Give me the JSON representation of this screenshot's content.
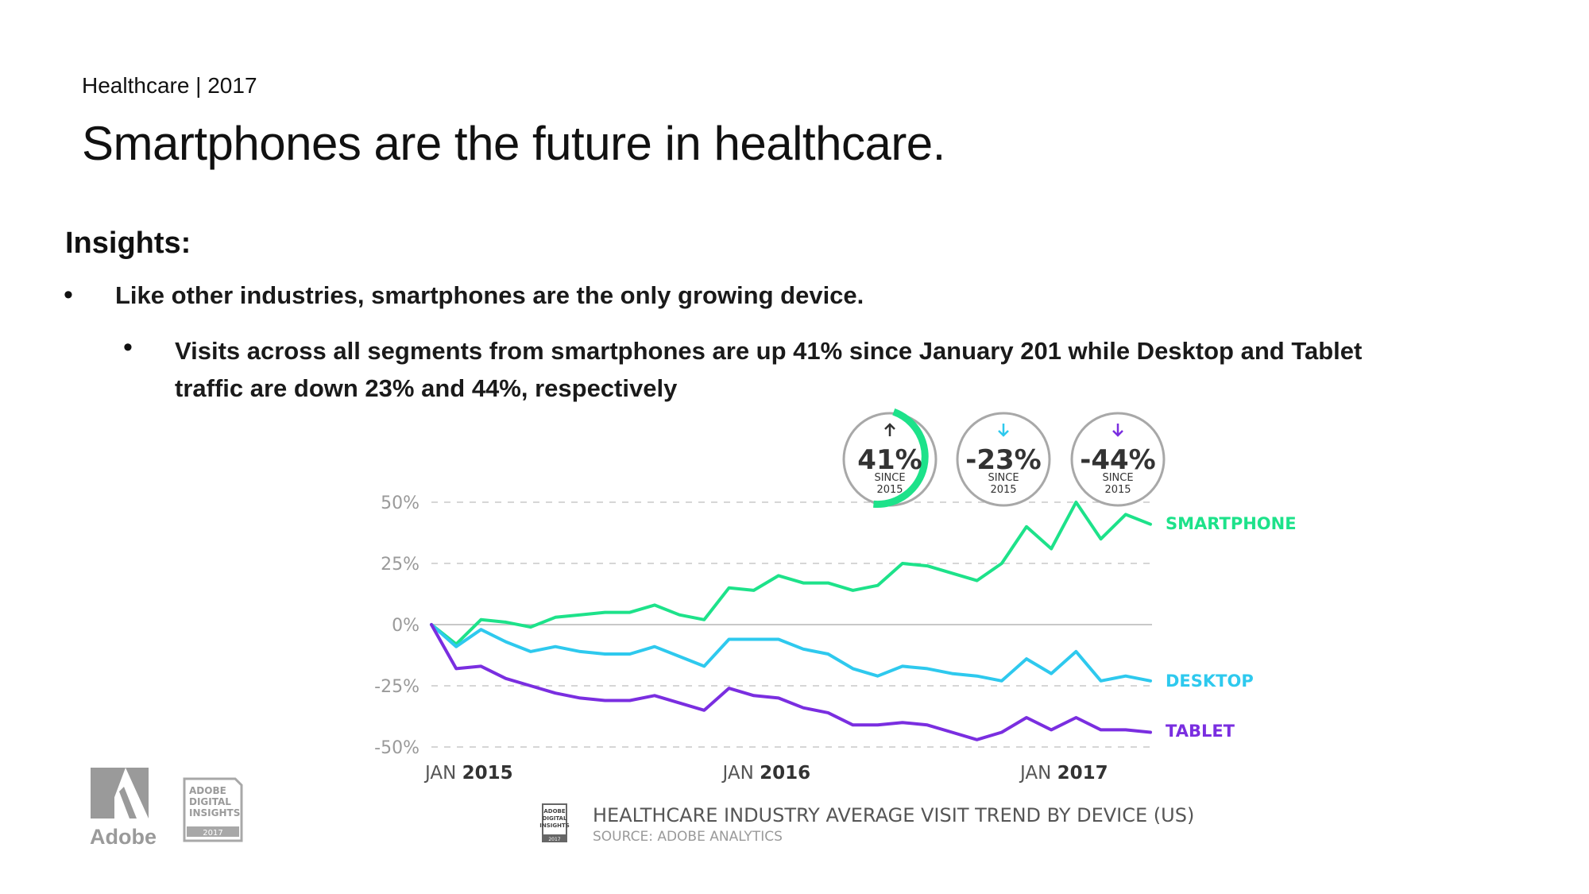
{
  "header": {
    "kicker": "Healthcare | 2017",
    "title": "Smartphones are the future in healthcare."
  },
  "insights": {
    "heading": "Insights:",
    "bullet_symbol": "•",
    "bullet1": "Like other industries, smartphones are the only growing device.",
    "bullet2_line1": "Visits across all segments from smartphones  are up 41% since January 201 while Desktop and Tablet",
    "bullet2_line2": "traffic are down 23% and 44%, respectively"
  },
  "badges": [
    {
      "value": "41%",
      "since": "SINCE",
      "year": "2015",
      "color": "#1de28a",
      "arrow": "up"
    },
    {
      "value": "-23%",
      "since": "SINCE",
      "year": "2015",
      "color": "#2ec9ee",
      "arrow": "down"
    },
    {
      "value": "-44%",
      "since": "SINCE",
      "year": "2015",
      "color": "#7a2ee0",
      "arrow": "down"
    }
  ],
  "chart_data": {
    "type": "line",
    "title": "HEALTHCARE INDUSTRY AVERAGE VISIT TREND BY DEVICE (US)",
    "subtitle": "SOURCE: ADOBE ANALYTICS",
    "ylim": [
      -50,
      50
    ],
    "y_ticks": [
      {
        "value": 50,
        "label": "50%"
      },
      {
        "value": 25,
        "label": "25%"
      },
      {
        "value": 0,
        "label": "0%"
      },
      {
        "value": -25,
        "label": "-25%"
      },
      {
        "value": -50,
        "label": "-50%"
      }
    ],
    "x_ticks": [
      {
        "index": 0,
        "prefix": "JAN",
        "year": "2015"
      },
      {
        "index": 12,
        "prefix": "JAN",
        "year": "2016"
      },
      {
        "index": 24,
        "prefix": "JAN",
        "year": "2017"
      }
    ],
    "x_points": 30,
    "grid": true,
    "series": [
      {
        "name": "SMARTPHONE",
        "color": "#1de28a",
        "values": [
          0,
          -8,
          2,
          1,
          -1,
          3,
          4,
          5,
          5,
          8,
          4,
          2,
          15,
          14,
          20,
          17,
          17,
          14,
          16,
          25,
          24,
          21,
          18,
          25,
          40,
          31,
          50,
          35,
          45,
          41
        ]
      },
      {
        "name": "DESKTOP",
        "color": "#2ec9ee",
        "values": [
          0,
          -9,
          -2,
          -7,
          -11,
          -9,
          -11,
          -12,
          -12,
          -9,
          -13,
          -17,
          -6,
          -6,
          -6,
          -10,
          -12,
          -18,
          -21,
          -17,
          -18,
          -20,
          -21,
          -23,
          -14,
          -20,
          -11,
          -23,
          -21,
          -23
        ]
      },
      {
        "name": "TABLET",
        "color": "#7a2ee0",
        "values": [
          0,
          -18,
          -17,
          -22,
          -25,
          -28,
          -30,
          -31,
          -31,
          -29,
          -32,
          -35,
          -26,
          -29,
          -30,
          -34,
          -36,
          -41,
          -41,
          -40,
          -41,
          -44,
          -47,
          -44,
          -38,
          -43,
          -38,
          -43,
          -43,
          -44
        ]
      }
    ]
  },
  "logos": {
    "adobe": "Adobe",
    "badge_line1": "ADOBE",
    "badge_line2": "DIGITAL",
    "badge_line3": "INSIGHTS",
    "badge_year": "2017"
  }
}
